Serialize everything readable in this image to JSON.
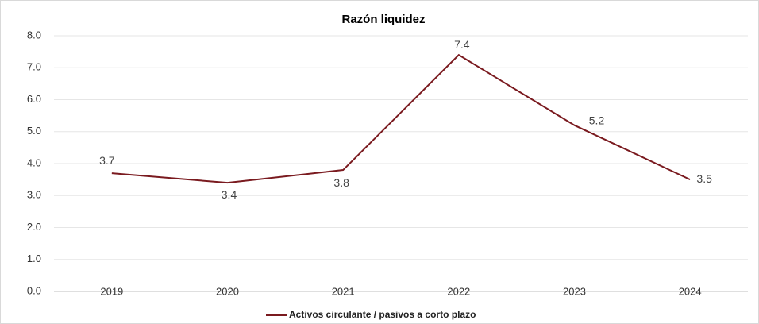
{
  "chart_data": {
    "type": "line",
    "title": "Razón liquidez",
    "categories": [
      "2019",
      "2020",
      "2021",
      "2022",
      "2023",
      "2024"
    ],
    "series": [
      {
        "name": "Activos circulante / pasivos a corto plazo",
        "color": "#7a1a1f",
        "values": [
          3.7,
          3.4,
          3.8,
          7.4,
          5.2,
          3.5
        ]
      }
    ],
    "ylim": [
      0,
      8
    ],
    "yticks": [
      {
        "value": 0,
        "label": "0.0"
      },
      {
        "value": 1,
        "label": "1.0"
      },
      {
        "value": 2,
        "label": "2.0"
      },
      {
        "value": 3,
        "label": "3.0"
      },
      {
        "value": 4,
        "label": "4.0"
      },
      {
        "value": 5,
        "label": "5.0"
      },
      {
        "value": 6,
        "label": "6.0"
      },
      {
        "value": 7,
        "label": "7.0"
      },
      {
        "value": 8,
        "label": "8.0"
      }
    ],
    "grid": true,
    "legend": "bottom"
  }
}
